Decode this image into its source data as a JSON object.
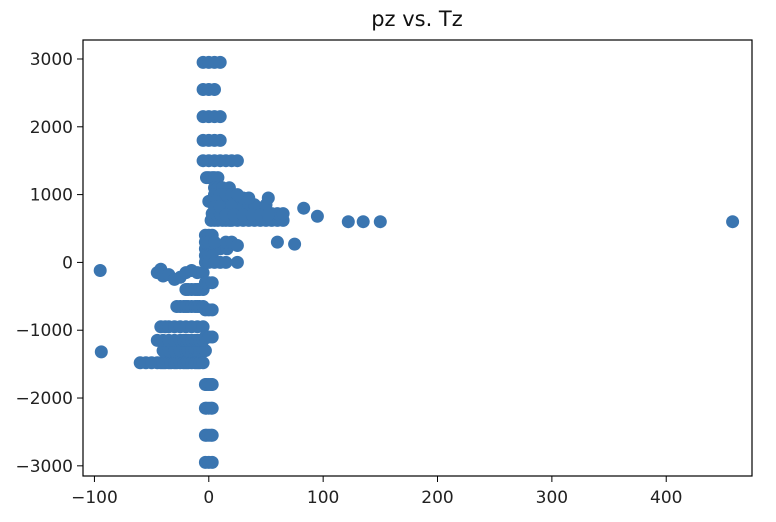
{
  "chart_data": {
    "type": "scatter",
    "title": "pz vs. Tz",
    "xlabel": "",
    "ylabel": "",
    "xlim": [
      -110,
      475
    ],
    "ylim": [
      -3150,
      3280
    ],
    "grid": false,
    "marker_color": "#3a75b0",
    "x_ticks": [
      -100,
      0,
      100,
      200,
      300,
      400
    ],
    "y_ticks": [
      3000,
      2000,
      1000,
      0,
      -1000,
      -2000,
      -3000
    ],
    "series": [
      {
        "x": [
          -95,
          -94,
          -60,
          -55,
          -50,
          -45,
          -42,
          -40,
          -38,
          -35,
          -33,
          -30,
          -28,
          -25,
          -22,
          -20,
          -18,
          -15,
          -12,
          -10,
          -8,
          -5,
          -40,
          -35,
          -30,
          -25,
          -20,
          -18,
          -15,
          -12,
          -10,
          -8,
          -5,
          -3,
          -45,
          -40,
          -35,
          -30,
          -25,
          -22,
          -20,
          -18,
          -15,
          -12,
          -10,
          -8,
          -5,
          -42,
          -38,
          -35,
          -30,
          -25,
          -20,
          -15,
          -10,
          -5,
          -28,
          -25,
          -22,
          -20,
          -18,
          -15,
          -12,
          -10,
          -8,
          -5,
          -20,
          -18,
          -15,
          -12,
          -10,
          -8,
          -5,
          -45,
          -42,
          -40,
          -35,
          -30,
          -25,
          -20,
          -15,
          -10,
          -5,
          -3,
          -2,
          0,
          2,
          3,
          -3,
          -2,
          0,
          2,
          3,
          -3,
          -2,
          0,
          2,
          3,
          -3,
          0,
          3,
          -3,
          0,
          3,
          -3,
          0,
          3,
          -3,
          0,
          3,
          -5,
          0,
          5,
          10,
          -5,
          0,
          5,
          -5,
          0,
          5,
          10,
          -5,
          0,
          5,
          10,
          -5,
          0,
          5,
          10,
          15,
          20,
          25,
          -2,
          0,
          3,
          5,
          8,
          2,
          5,
          8,
          12,
          15,
          18,
          20,
          25,
          30,
          35,
          40,
          45,
          50,
          55,
          60,
          65,
          3,
          6,
          10,
          15,
          20,
          25,
          30,
          35,
          40,
          45,
          50,
          55,
          60,
          65,
          5,
          10,
          15,
          20,
          25,
          30,
          35,
          40,
          50,
          5,
          10,
          15,
          20,
          25,
          30,
          35,
          52,
          5,
          8,
          12,
          18,
          5,
          10,
          15,
          20,
          25,
          0,
          3,
          6,
          5,
          10,
          20,
          -3,
          0,
          3,
          -3,
          0,
          3,
          5,
          10,
          16,
          -3,
          0,
          3,
          -3,
          0,
          5,
          10,
          15,
          25,
          -3,
          0,
          5,
          15,
          15,
          22,
          30,
          38,
          45,
          52,
          83,
          95,
          122,
          135,
          150,
          458,
          75,
          60,
          20,
          25
        ],
        "y": [
          -120,
          -1320,
          -1480,
          -1480,
          -1480,
          -1480,
          -1480,
          -1480,
          -1480,
          -1480,
          -1480,
          -1480,
          -1480,
          -1480,
          -1480,
          -1480,
          -1480,
          -1480,
          -1480,
          -1480,
          -1480,
          -1480,
          -1300,
          -1300,
          -1300,
          -1300,
          -1300,
          -1300,
          -1300,
          -1300,
          -1300,
          -1300,
          -1300,
          -1300,
          -1150,
          -1150,
          -1150,
          -1150,
          -1150,
          -1150,
          -1150,
          -1150,
          -1150,
          -1150,
          -1150,
          -1150,
          -1150,
          -950,
          -950,
          -950,
          -950,
          -950,
          -950,
          -950,
          -950,
          -950,
          -650,
          -650,
          -650,
          -650,
          -650,
          -650,
          -650,
          -650,
          -650,
          -650,
          -400,
          -400,
          -400,
          -400,
          -400,
          -400,
          -400,
          -150,
          -100,
          -200,
          -180,
          -250,
          -220,
          -150,
          -120,
          -150,
          -150,
          -1800,
          -1800,
          -1800,
          -1800,
          -1800,
          -2150,
          -2150,
          -2150,
          -2150,
          -2150,
          -2550,
          -2550,
          -2550,
          -2550,
          -2550,
          -2950,
          -2950,
          -2950,
          -1100,
          -1100,
          -1100,
          -700,
          -700,
          -700,
          -300,
          -300,
          -300,
          2950,
          2950,
          2950,
          2950,
          2550,
          2550,
          2550,
          2150,
          2150,
          2150,
          2150,
          1800,
          1800,
          1800,
          1800,
          1500,
          1500,
          1500,
          1500,
          1500,
          1500,
          1500,
          1250,
          1250,
          1250,
          1250,
          1250,
          620,
          620,
          620,
          620,
          620,
          620,
          620,
          620,
          620,
          620,
          620,
          620,
          620,
          620,
          620,
          620,
          720,
          720,
          720,
          720,
          720,
          720,
          720,
          720,
          720,
          720,
          720,
          720,
          720,
          720,
          850,
          850,
          850,
          850,
          850,
          850,
          850,
          850,
          850,
          950,
          950,
          950,
          950,
          950,
          950,
          950,
          950,
          1100,
          1100,
          1100,
          1100,
          1000,
          1000,
          1000,
          1000,
          1000,
          900,
          900,
          900,
          820,
          820,
          820,
          400,
          400,
          400,
          200,
          200,
          200,
          200,
          200,
          200,
          100,
          100,
          100,
          0,
          0,
          0,
          0,
          0,
          0,
          300,
          300,
          300,
          300,
          700,
          700,
          700,
          700,
          700,
          700,
          800,
          680,
          600,
          600,
          600,
          600,
          270,
          300,
          300,
          250
        ]
      }
    ]
  }
}
